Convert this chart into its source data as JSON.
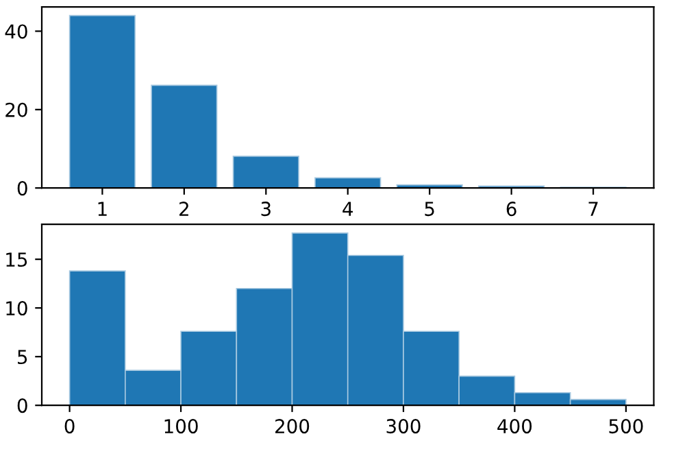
{
  "chart_data": [
    {
      "type": "bar",
      "x": [
        1,
        2,
        3,
        4,
        5,
        6,
        7
      ],
      "values": [
        44,
        26.2,
        8.1,
        2.6,
        0.8,
        0.5,
        0.2
      ],
      "color": "#1f77b4",
      "xlim": [
        0.26,
        7.74
      ],
      "ylim": [
        0,
        46.2
      ],
      "xticks": [
        1,
        2,
        3,
        4,
        5,
        6,
        7
      ],
      "yticks": [
        0,
        20,
        40
      ],
      "grid": false
    },
    {
      "type": "histogram",
      "bins": [
        0,
        50,
        100,
        150,
        200,
        250,
        300,
        350,
        400,
        450,
        500
      ],
      "values": [
        13.8,
        3.6,
        7.6,
        12.0,
        17.7,
        15.4,
        7.6,
        3.0,
        1.3,
        0.6
      ],
      "color": "#1f77b4",
      "xlim": [
        -25,
        525
      ],
      "ylim": [
        0,
        18.6
      ],
      "xticks": [
        0,
        100,
        200,
        300,
        400,
        500
      ],
      "yticks": [
        0,
        5,
        10,
        15
      ],
      "grid": false
    }
  ]
}
